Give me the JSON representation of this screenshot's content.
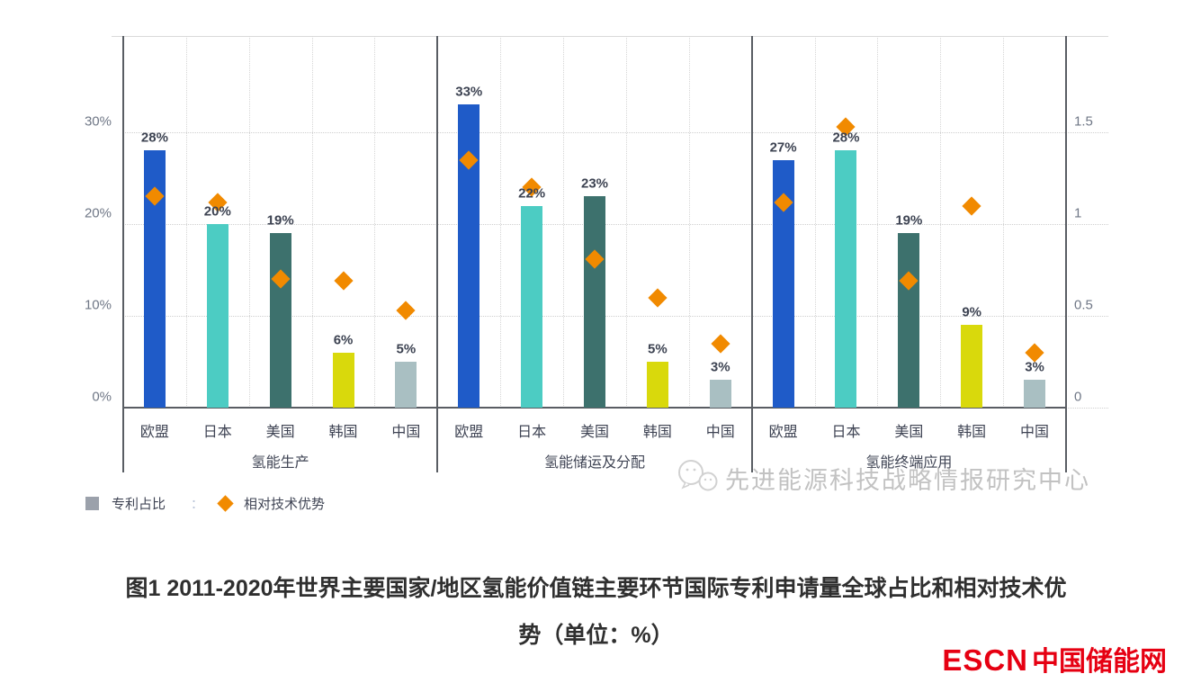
{
  "chart_data": {
    "type": "bar",
    "subtype": "grouped bars (left % axis) with diamond markers (right ratio axis)",
    "categories": [
      "欧盟",
      "日本",
      "美国",
      "韩国",
      "中国"
    ],
    "groups": [
      {
        "label": "氢能生产",
        "bar_values_pct": [
          28,
          20,
          19,
          6,
          5
        ],
        "bar_labels": [
          "28%",
          "20%",
          "19%",
          "6%",
          "5%"
        ],
        "diamond_values": [
          1.15,
          1.12,
          0.7,
          0.69,
          0.53
        ]
      },
      {
        "label": "氢能储运及分配",
        "bar_values_pct": [
          33,
          22,
          23,
          5,
          3
        ],
        "bar_labels": [
          "33%",
          "22%",
          "23%",
          "5%",
          "3%"
        ],
        "diamond_values": [
          1.35,
          1.2,
          0.81,
          0.6,
          0.35
        ]
      },
      {
        "label": "氢能终端应用",
        "bar_values_pct": [
          27,
          28,
          19,
          9,
          3
        ],
        "bar_labels": [
          "27%",
          "28%",
          "19%",
          "9%",
          "3%"
        ],
        "diamond_values": [
          1.12,
          1.53,
          0.69,
          1.1,
          0.3
        ]
      }
    ],
    "series": [
      {
        "name": "专利占比",
        "marker": "bar",
        "axis": "left"
      },
      {
        "name": "相对技术优势",
        "marker": "diamond",
        "axis": "right"
      }
    ],
    "left_axis": {
      "tick_labels": [
        "30%",
        "20%",
        "10%",
        "0%"
      ],
      "tick_values": [
        30,
        20,
        10,
        0
      ],
      "range": [
        0,
        40
      ]
    },
    "right_axis": {
      "tick_labels": [
        "1.5",
        "1",
        "0.5",
        "0"
      ],
      "tick_values": [
        1.5,
        1,
        0.5,
        0
      ],
      "range": [
        0,
        2
      ]
    },
    "bar_colors": [
      "#1f5bc8",
      "#4cccc3",
      "#3d716d",
      "#d9d90c",
      "#a9bfc2"
    ],
    "diamond_color": "#f18a00",
    "grid": true,
    "legend_position": "bottom-left"
  },
  "legend": {
    "items": [
      {
        "label": "专利占比",
        "marker": "square",
        "color": "#9ba1ab"
      },
      {
        "label": "相对技术优势",
        "marker": "diamond",
        "color": "#f18a00"
      }
    ],
    "separator": "："
  },
  "watermark": {
    "text": "先进能源科技战略情报研究中心"
  },
  "caption": {
    "line1": "图1 2011-2020年世界主要国家/地区氢能价值链主要环节国际专利申请量全球占比和相对技术优",
    "line2": "势（单位：%）"
  },
  "logo": {
    "text_en": "ESCN",
    "text_cn": "中国储能网",
    "color": "#e60012"
  }
}
